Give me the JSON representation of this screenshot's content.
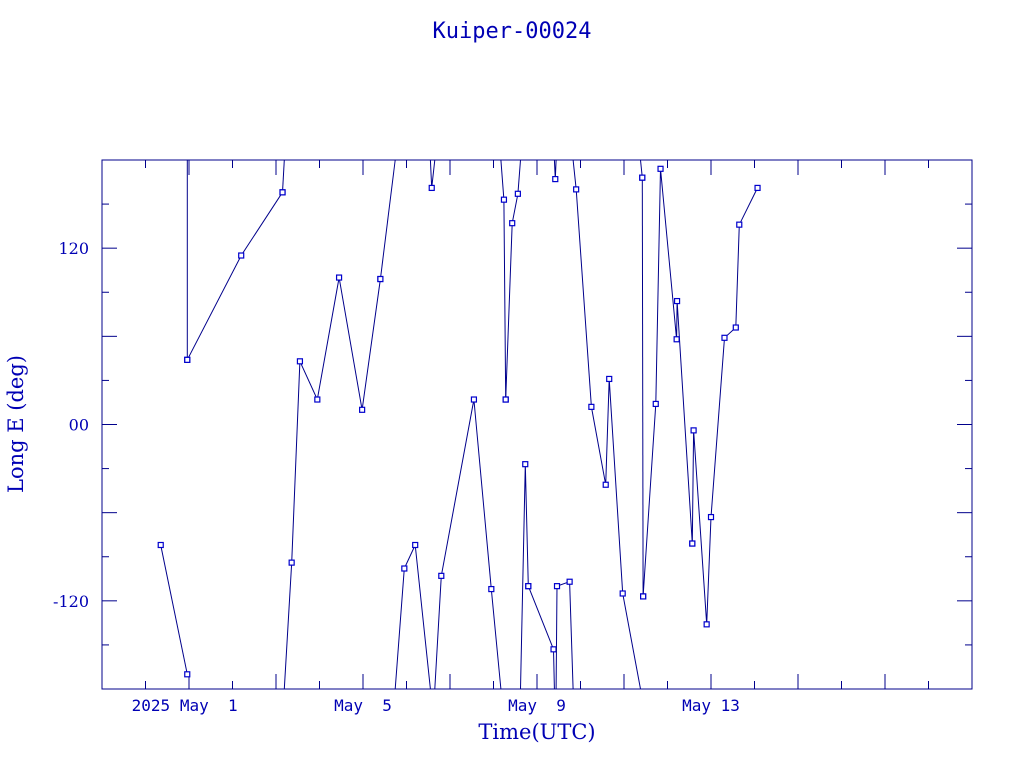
{
  "chart_data": {
    "type": "line",
    "title": "Kuiper-00024",
    "xlabel": "Time(UTC)",
    "ylabel": "Long E (deg)",
    "x_unit": "days",
    "xlim": [
      -3.0,
      17.0
    ],
    "ylim": [
      -180,
      180
    ],
    "x_ticks": [
      {
        "x": -1.1,
        "label": "2025 May  1"
      },
      {
        "x": 3.0,
        "label": "May  5"
      },
      {
        "x": 7.0,
        "label": "May  9"
      },
      {
        "x": 11.0,
        "label": "May 13"
      }
    ],
    "y_ticks": [
      {
        "y": 120,
        "label": "120"
      },
      {
        "y": 0,
        "label": "00"
      },
      {
        "y": -120,
        "label": "-120"
      }
    ],
    "colors": {
      "line": "#00008b",
      "marker": "#0000cd",
      "text": "#0000b4",
      "axis": "#00008b"
    },
    "grid": false,
    "series": [
      {
        "x": [
          -1.65,
          -1.04
        ],
        "y": [
          -82,
          -170
        ]
      },
      {
        "x": [
          -1.04,
          -1.04
        ],
        "y": [
          180,
          44
        ]
      },
      {
        "x": [
          -1.04,
          0.2,
          1.15
        ],
        "y": [
          44,
          115,
          158
        ]
      },
      {
        "x": [
          1.15,
          1.19
        ],
        "y": [
          158,
          180
        ]
      },
      {
        "x": [
          1.19,
          1.36,
          1.55,
          1.95,
          2.45,
          2.98,
          3.4
        ],
        "y": [
          -180,
          -94,
          43,
          17,
          100,
          10,
          99
        ]
      },
      {
        "x": [
          3.4,
          3.74
        ],
        "y": [
          99,
          180
        ]
      },
      {
        "x": [
          3.74,
          3.95,
          4.2,
          4.55
        ],
        "y": [
          -180,
          -98,
          -82,
          -180
        ]
      },
      {
        "x": [
          4.55,
          4.58,
          4.65
        ],
        "y": [
          180,
          161,
          180
        ]
      },
      {
        "x": [
          4.65,
          4.8,
          5.55,
          5.95,
          6.17
        ],
        "y": [
          -180,
          -103,
          17,
          -112,
          -180
        ]
      },
      {
        "x": [
          6.17,
          6.24,
          6.28
        ],
        "y": [
          180,
          153,
          17
        ]
      },
      {
        "x": [
          6.28,
          6.43,
          6.56,
          6.62
        ],
        "y": [
          17,
          137,
          157,
          180
        ]
      },
      {
        "x": [
          6.62,
          6.73,
          6.8
        ],
        "y": [
          -180,
          -27,
          -110
        ]
      },
      {
        "x": [
          6.8,
          7.38,
          7.4
        ],
        "y": [
          -110,
          -153,
          -180
        ]
      },
      {
        "x": [
          7.4,
          7.42,
          7.44
        ],
        "y": [
          180,
          167,
          180
        ]
      },
      {
        "x": [
          7.44,
          7.46,
          7.75,
          7.83
        ],
        "y": [
          -180,
          -110,
          -107,
          -180
        ]
      },
      {
        "x": [
          7.83,
          7.9,
          8.25,
          8.58,
          8.66,
          8.97,
          9.38
        ],
        "y": [
          180,
          160,
          12,
          -41,
          31,
          -115,
          -180
        ]
      },
      {
        "x": [
          9.38,
          9.42
        ],
        "y": [
          180,
          168
        ]
      },
      {
        "x": [
          9.42,
          9.44
        ],
        "y": [
          168,
          -117
        ]
      },
      {
        "x": [
          9.44,
          9.73,
          9.84,
          10.21,
          10.22,
          10.57
        ],
        "y": [
          -117,
          14,
          174,
          58,
          84,
          -81
        ]
      },
      {
        "x": [
          10.57,
          10.6,
          10.9,
          11.0,
          11.31,
          11.57,
          11.65,
          12.07
        ],
        "y": [
          -81,
          -4,
          -136,
          -63,
          59,
          66,
          136,
          161
        ]
      }
    ]
  }
}
